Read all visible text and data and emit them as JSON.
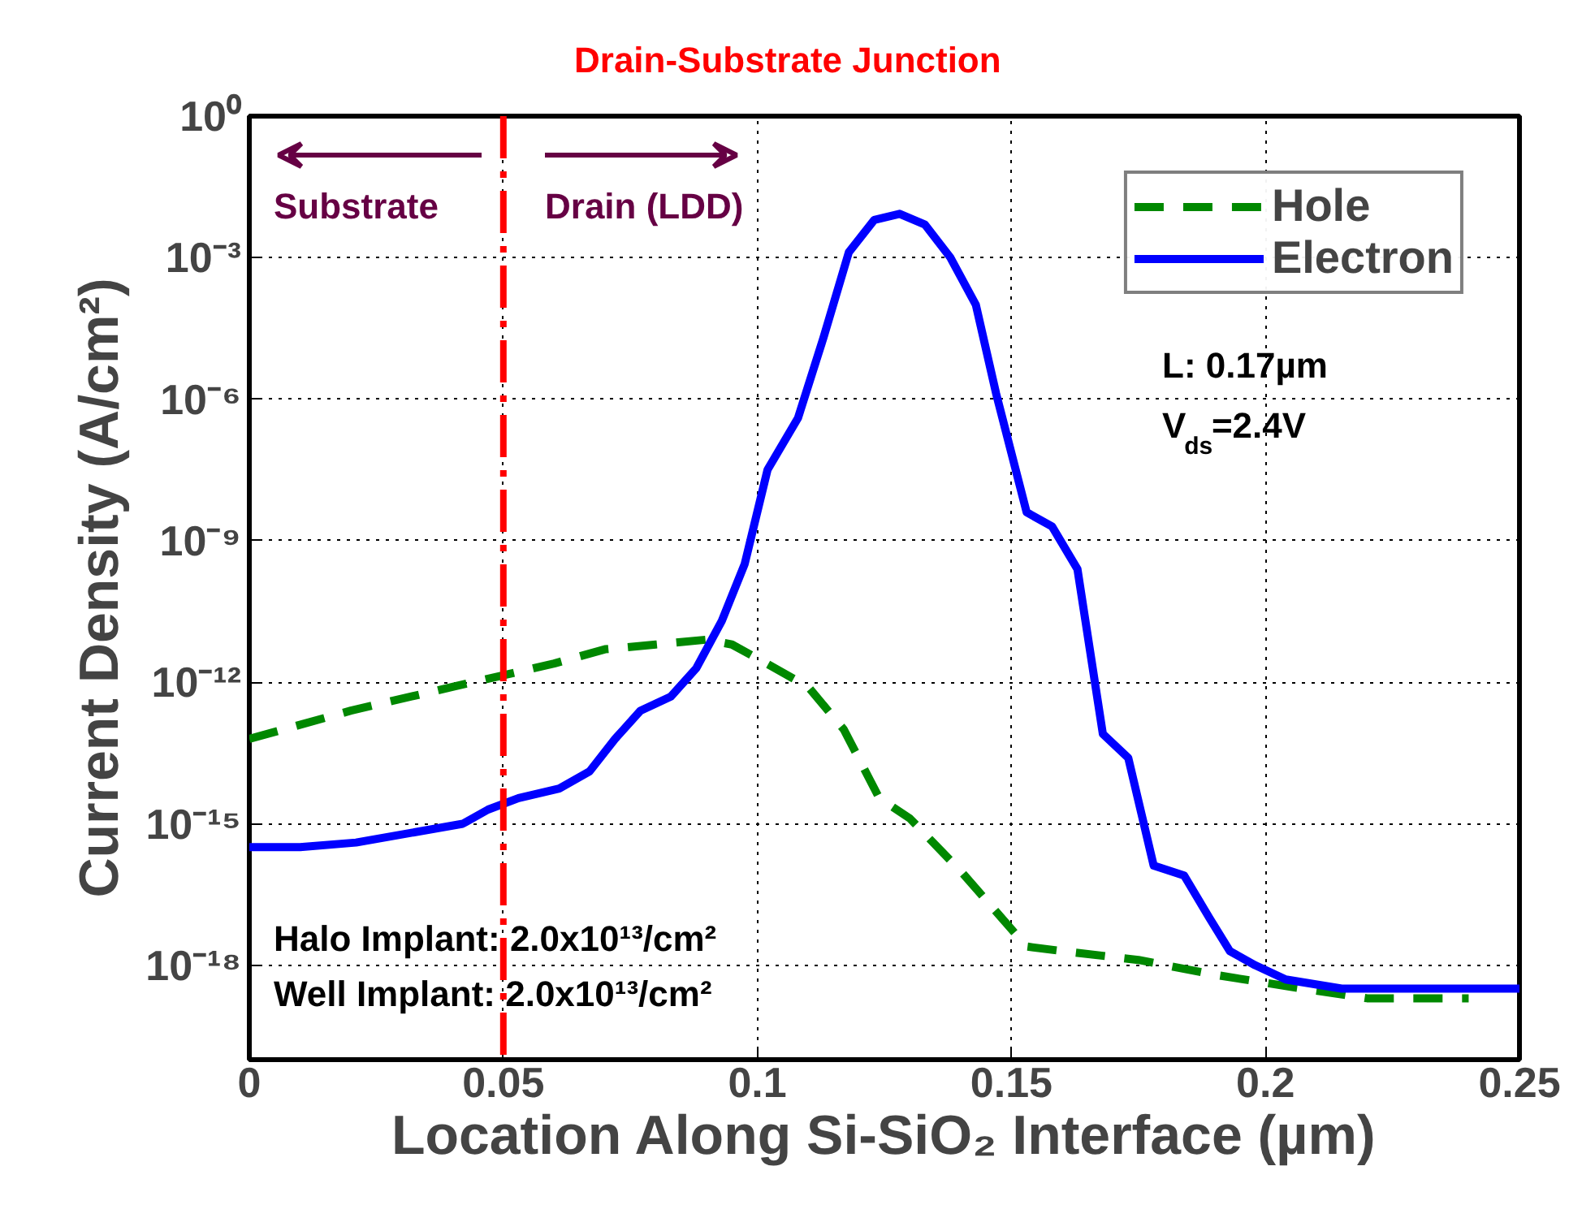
{
  "chart_data": {
    "type": "line",
    "xlabel": "Location Along Si-SiO₂ Interface (µm)",
    "ylabel": "Current Density (A/cm²)",
    "log": "y",
    "xlim": [
      0,
      0.25
    ],
    "xticks": [
      0,
      0.05,
      0.1,
      0.15,
      0.2,
      0.25
    ],
    "ylim": [
      1e-20,
      1
    ],
    "yticks": [
      {
        "value": 1,
        "label": "10⁰"
      },
      {
        "value": 0.001,
        "label": "10⁻³"
      },
      {
        "value": 1e-06,
        "label": "10⁻⁶"
      },
      {
        "value": 1e-09,
        "label": "10⁻⁹"
      },
      {
        "value": 1e-12,
        "label": "10⁻¹²"
      },
      {
        "value": 1e-15,
        "label": "10⁻¹⁵"
      },
      {
        "value": 1e-18,
        "label": "10⁻¹⁸"
      }
    ],
    "grid": true,
    "legend": "top right",
    "series": [
      {
        "name": "Hole",
        "color": "#008800",
        "line_style": "dashed",
        "x": [
          0,
          0.02,
          0.04,
          0.05,
          0.06,
          0.07,
          0.08,
          0.09,
          0.095,
          0.1,
          0.11,
          0.117,
          0.124,
          0.13,
          0.14,
          0.153,
          0.16,
          0.175,
          0.19,
          0.205,
          0.22,
          0.24
        ],
        "values": [
          6.3e-14,
          2.5e-13,
          8e-13,
          1.4e-12,
          2.5e-12,
          5e-12,
          6.3e-12,
          8e-12,
          6.3e-12,
          3.2e-12,
          8e-13,
          1e-13,
          3.5e-15,
          1.3e-15,
          1e-16,
          2.5e-18,
          2e-18,
          1.3e-18,
          6.3e-19,
          3.5e-19,
          2e-19,
          2e-19
        ]
      },
      {
        "name": "Electron",
        "color": "#0000ff",
        "line_style": "solid",
        "x": [
          0,
          0.01,
          0.021,
          0.042,
          0.047,
          0.053,
          0.061,
          0.067,
          0.072,
          0.077,
          0.083,
          0.088,
          0.093,
          0.0975,
          0.102,
          0.108,
          0.113,
          0.118,
          0.123,
          0.128,
          0.133,
          0.138,
          0.143,
          0.147,
          0.153,
          0.158,
          0.163,
          0.168,
          0.173,
          0.178,
          0.184,
          0.189,
          0.193,
          0.198,
          0.204,
          0.215,
          0.25
        ],
        "values": [
          3.2e-16,
          3.2e-16,
          4e-16,
          1e-15,
          2e-15,
          3.5e-15,
          5.6e-15,
          1.3e-14,
          6.3e-14,
          2.5e-13,
          5e-13,
          2e-12,
          2e-11,
          3.2e-10,
          3.2e-08,
          4e-07,
          2e-05,
          0.0013,
          0.0063,
          0.0085,
          0.005,
          0.001,
          0.0001,
          1.3e-06,
          4e-09,
          2e-09,
          2.5e-10,
          8e-14,
          2.5e-14,
          1.3e-16,
          8e-17,
          1e-17,
          2e-18,
          1e-18,
          5e-19,
          3.2e-19,
          3.2e-19
        ]
      }
    ],
    "ref_lines": [
      {
        "axis": "x",
        "value": 0.05,
        "label": "Drain-Substrate Junction",
        "color": "#ff0000",
        "line_style": "dashdot"
      }
    ],
    "annotations": [
      "Substrate",
      "Drain (LDD)",
      "L: 0.17µm",
      "V$_{ds}$=2.4V",
      "Halo Implant: 2.0x10¹³/cm²",
      "Well Implant: 2.0x10¹³/cm²"
    ]
  }
}
